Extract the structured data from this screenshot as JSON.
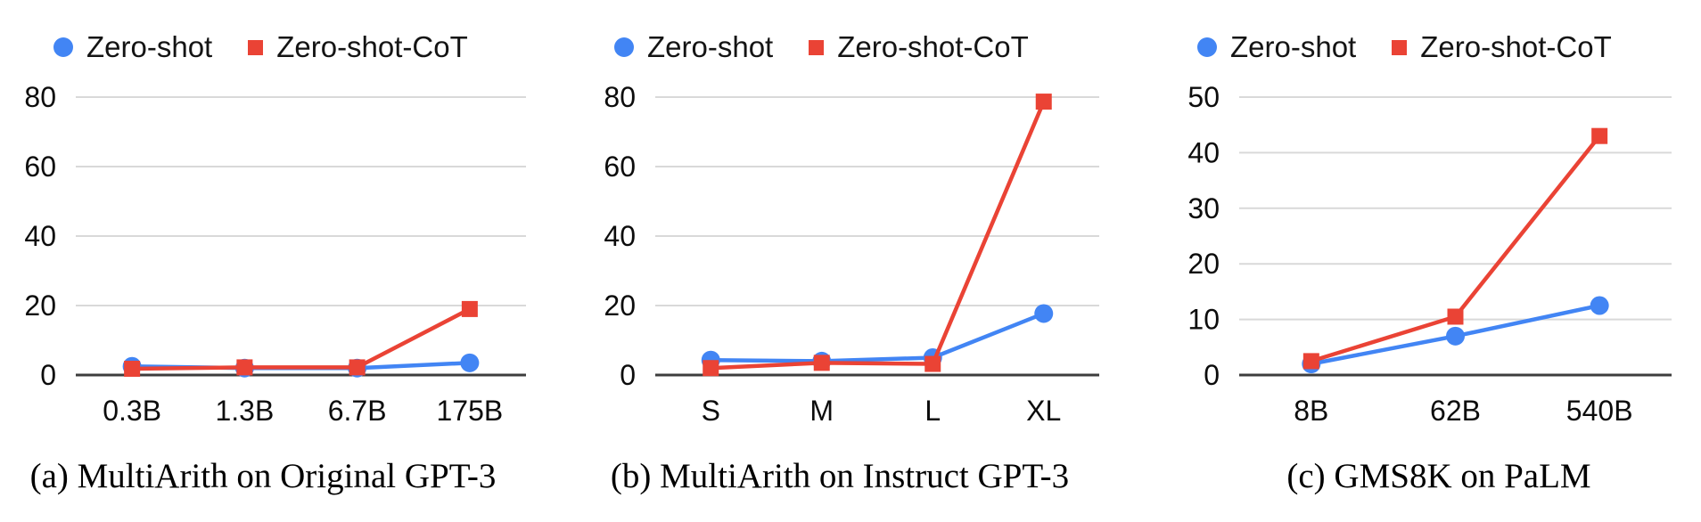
{
  "legend": {
    "zero_shot": "Zero-shot",
    "zero_shot_cot": "Zero-shot-CoT"
  },
  "colors": {
    "zero_shot": "#4285F4",
    "zero_shot_cot": "#EA4335",
    "gridline": "#d9d9d9",
    "axis": "#3d3d3d",
    "text": "#0c0c0c"
  },
  "chart_data": [
    {
      "type": "line",
      "title": "(a) MultiArith on Original GPT-3",
      "categories": [
        "0.3B",
        "1.3B",
        "6.7B",
        "175B"
      ],
      "series": [
        {
          "name": "Zero-shot",
          "color": "#4285F4",
          "marker": "circle",
          "values": [
            2.5,
            2,
            2,
            3.5
          ]
        },
        {
          "name": "Zero-shot-CoT",
          "color": "#EA4335",
          "marker": "square",
          "values": [
            1.8,
            2.2,
            2.2,
            19
          ]
        }
      ],
      "ylim": [
        0,
        80
      ],
      "y_ticks": [
        0,
        20,
        40,
        60,
        80
      ],
      "grid": true,
      "legend_position": "top"
    },
    {
      "type": "line",
      "title": "(b) MultiArith on Instruct GPT-3",
      "categories": [
        "S",
        "M",
        "L",
        "XL"
      ],
      "series": [
        {
          "name": "Zero-shot",
          "color": "#4285F4",
          "marker": "circle",
          "values": [
            4.3,
            4,
            5,
            17.7
          ]
        },
        {
          "name": "Zero-shot-CoT",
          "color": "#EA4335",
          "marker": "square",
          "values": [
            2,
            3.5,
            3.2,
            78.7
          ]
        }
      ],
      "ylim": [
        0,
        80
      ],
      "y_ticks": [
        0,
        20,
        40,
        60,
        80
      ],
      "grid": true,
      "legend_position": "top"
    },
    {
      "type": "line",
      "title": "(c) GMS8K on PaLM",
      "categories": [
        "8B",
        "62B",
        "540B"
      ],
      "series": [
        {
          "name": "Zero-shot",
          "color": "#4285F4",
          "marker": "circle",
          "values": [
            2,
            7,
            12.5
          ]
        },
        {
          "name": "Zero-shot-CoT",
          "color": "#EA4335",
          "marker": "square",
          "values": [
            2.5,
            10.5,
            43
          ]
        }
      ],
      "ylim": [
        0,
        50
      ],
      "y_ticks": [
        0,
        10,
        20,
        30,
        40,
        50
      ],
      "grid": true,
      "legend_position": "top"
    }
  ]
}
